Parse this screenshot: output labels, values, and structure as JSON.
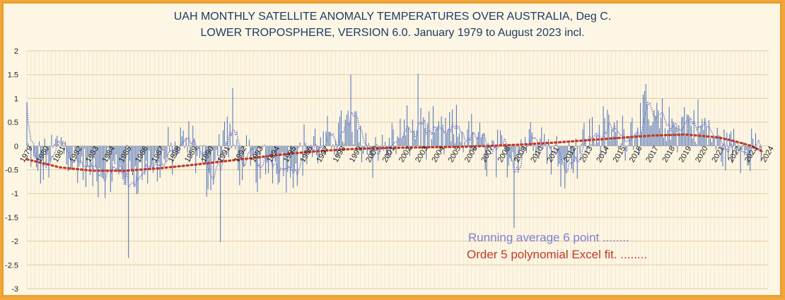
{
  "chart_data": {
    "type": "bar",
    "title": "UAH MONTHLY SATELLITE ANOMALY TEMPERATURES OVER AUSTRALIA, Deg C.",
    "subtitle": "LOWER TROPOSPHERE, VERSION 6.0. January 1979 to August 2023 incl.",
    "ylim": [
      -3,
      2
    ],
    "yticks": [
      2,
      1.5,
      1,
      0.5,
      0,
      -0.5,
      -1,
      -1.5,
      -2,
      -2.5,
      -3
    ],
    "xlim": [
      1979,
      2024
    ],
    "xticks": [
      1979,
      1980,
      1981,
      1982,
      1983,
      1984,
      1985,
      1986,
      1987,
      1988,
      1989,
      1990,
      1991,
      1992,
      1993,
      1994,
      1995,
      1996,
      1997,
      1998,
      1999,
      2000,
      2001,
      2002,
      2003,
      2004,
      2005,
      2006,
      2007,
      2008,
      2009,
      2010,
      2011,
      2012,
      2013,
      2014,
      2015,
      2016,
      2017,
      2018,
      2019,
      2020,
      2021,
      2022,
      2023,
      2024
    ],
    "grid": true,
    "series": [
      {
        "name": "Running average 6 point",
        "style": "dotted",
        "color": "#7b7fd6"
      },
      {
        "name": "Order 5 polynomial Excel fit.",
        "style": "dotted",
        "color": "#c0392b"
      }
    ],
    "monthly_anomaly": {
      "color": "#4a6fb5",
      "start": "1979-01",
      "yearly_levels": {
        "1979": -0.3,
        "1980": -0.45,
        "1981": 0.1,
        "1982": -0.35,
        "1983": -0.6,
        "1984": -0.55,
        "1985": -0.5,
        "1986": -0.45,
        "1987": -0.35,
        "1988": -0.1,
        "1989": 0.05,
        "1990": -0.6,
        "1991": 0.3,
        "1992": -0.3,
        "1993": -0.45,
        "1994": -0.25,
        "1995": -0.4,
        "1996": 0.0,
        "1997": -0.1,
        "1998": 0.4,
        "1999": 0.3,
        "2000": -0.1,
        "2001": 0.0,
        "2002": 0.25,
        "2003": 0.3,
        "2004": 0.1,
        "2005": 0.3,
        "2006": 0.15,
        "2007": -0.1,
        "2008": -0.25,
        "2009": 0.05,
        "2010": 0.3,
        "2011": -0.2,
        "2012": -0.25,
        "2013": 0.2,
        "2014": 0.3,
        "2015": 0.25,
        "2016": 0.45,
        "2017": 0.55,
        "2018": 0.35,
        "2019": 0.55,
        "2020": 0.4,
        "2021": 0.0,
        "2022": -0.05,
        "2023": 0.05
      },
      "notable_points": [
        {
          "date": "1979-01",
          "value": 0.92
        },
        {
          "date": "1985-03",
          "value": -2.35
        },
        {
          "date": "1990-10",
          "value": -2.02
        },
        {
          "date": "1991-07",
          "value": 1.22
        },
        {
          "date": "1998-09",
          "value": 1.5
        },
        {
          "date": "2002-10",
          "value": 1.52
        },
        {
          "date": "2008-08",
          "value": -1.72
        },
        {
          "date": "2016-08",
          "value": 1.3
        }
      ]
    },
    "polynomial_fit": [
      {
        "x": 1979,
        "y": -0.28
      },
      {
        "x": 1981,
        "y": -0.45
      },
      {
        "x": 1983,
        "y": -0.52
      },
      {
        "x": 1985,
        "y": -0.52
      },
      {
        "x": 1987,
        "y": -0.47
      },
      {
        "x": 1989,
        "y": -0.4
      },
      {
        "x": 1991,
        "y": -0.32
      },
      {
        "x": 1993,
        "y": -0.24
      },
      {
        "x": 1995,
        "y": -0.16
      },
      {
        "x": 1997,
        "y": -0.1
      },
      {
        "x": 1999,
        "y": -0.06
      },
      {
        "x": 2001,
        "y": -0.04
      },
      {
        "x": 2003,
        "y": -0.03
      },
      {
        "x": 2005,
        "y": -0.02
      },
      {
        "x": 2007,
        "y": 0.0
      },
      {
        "x": 2009,
        "y": 0.03
      },
      {
        "x": 2011,
        "y": 0.07
      },
      {
        "x": 2013,
        "y": 0.12
      },
      {
        "x": 2015,
        "y": 0.17
      },
      {
        "x": 2017,
        "y": 0.22
      },
      {
        "x": 2019,
        "y": 0.24
      },
      {
        "x": 2021,
        "y": 0.18
      },
      {
        "x": 2022,
        "y": 0.1
      },
      {
        "x": 2023,
        "y": 0.0
      },
      {
        "x": 2023.67,
        "y": -0.12
      }
    ]
  },
  "legend": {
    "running_label": "Running average 6 point  ........",
    "poly_label": "Order 5 polynomial Excel fit.  ........"
  }
}
